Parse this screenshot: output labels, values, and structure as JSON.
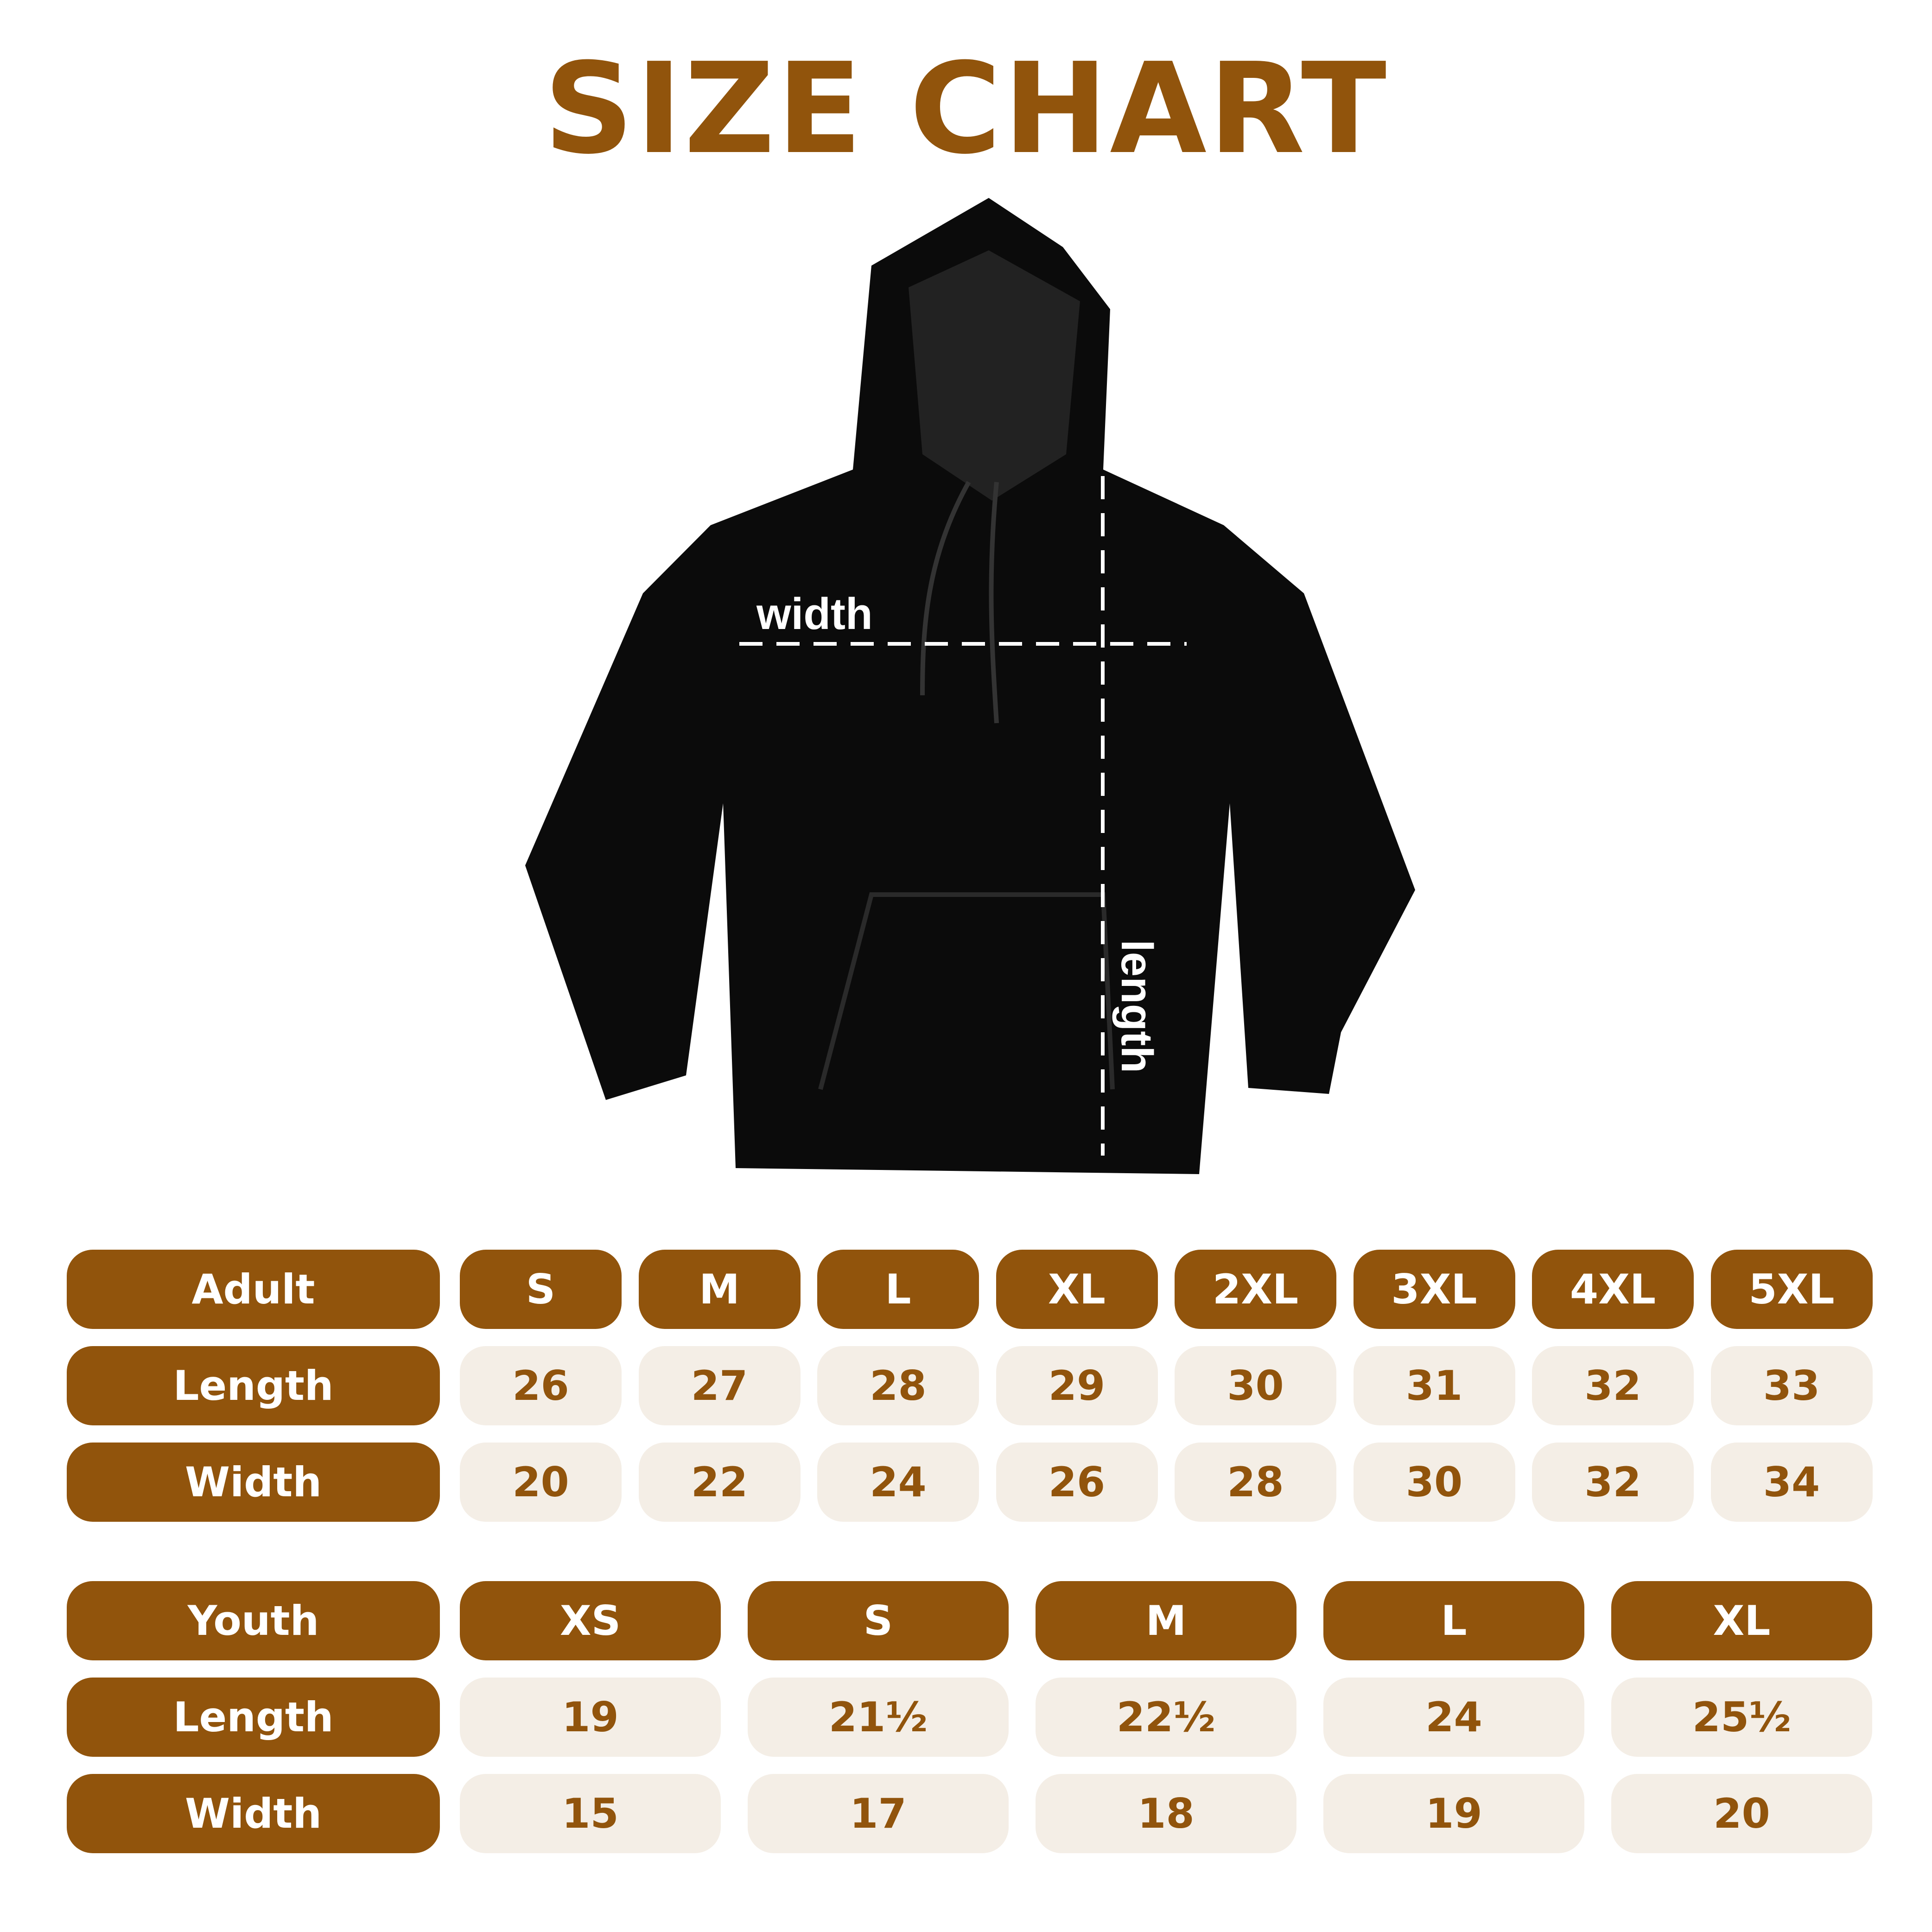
{
  "title": "SIZE CHART",
  "colors": {
    "brand": "#91540c",
    "cell_bg": "#f4eee6",
    "garment": "#0b0b0b"
  },
  "diagram": {
    "width_label": "width",
    "length_label": "length",
    "garment": "hoodie"
  },
  "adult": {
    "header": "Adult",
    "sizes": [
      "S",
      "M",
      "L",
      "XL",
      "2XL",
      "3XL",
      "4XL",
      "5XL"
    ],
    "rows": [
      {
        "label": "Length",
        "values": [
          "26",
          "27",
          "28",
          "29",
          "30",
          "31",
          "32",
          "33"
        ]
      },
      {
        "label": "Width",
        "values": [
          "20",
          "22",
          "24",
          "26",
          "28",
          "30",
          "32",
          "34"
        ]
      }
    ]
  },
  "youth": {
    "header": "Youth",
    "sizes": [
      "XS",
      "S",
      "M",
      "L",
      "XL"
    ],
    "rows": [
      {
        "label": "Length",
        "values": [
          "19",
          "21½",
          "22½",
          "24",
          "25½"
        ]
      },
      {
        "label": "Width",
        "values": [
          "15",
          "17",
          "18",
          "19",
          "20"
        ]
      }
    ]
  }
}
